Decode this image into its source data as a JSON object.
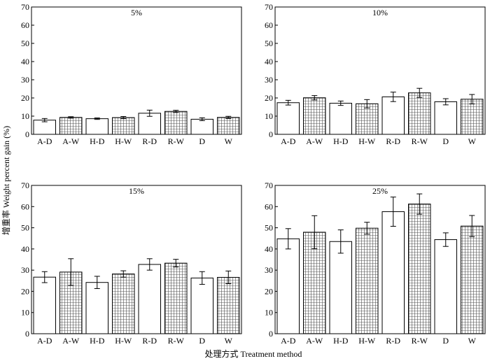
{
  "figure": {
    "ylabel": "增重率 Weight percent gain (%)",
    "xlabel": "处理方式 Treatment method",
    "colors": {
      "axis": "#000000",
      "bar_fill": "#ffffff",
      "hatch": "#555555"
    }
  },
  "chart_data": [
    {
      "type": "bar",
      "title": "5%",
      "categories": [
        "A-D",
        "A-W",
        "H-D",
        "H-W",
        "R-D",
        "R-W",
        "D",
        "W"
      ],
      "values": [
        7.8,
        9.3,
        8.6,
        9.2,
        11.6,
        12.6,
        8.3,
        9.3
      ],
      "errors": [
        0.9,
        0.4,
        0.4,
        0.6,
        1.7,
        0.6,
        0.8,
        0.6
      ],
      "hatched": [
        false,
        true,
        false,
        true,
        false,
        true,
        false,
        true
      ],
      "ylim": [
        0,
        70
      ],
      "yticks": [
        0,
        10,
        20,
        30,
        40,
        50,
        60,
        70
      ]
    },
    {
      "type": "bar",
      "title": "10%",
      "categories": [
        "A-D",
        "A-W",
        "H-D",
        "H-W",
        "R-D",
        "R-W",
        "D",
        "W"
      ],
      "values": [
        17.4,
        20.1,
        17.1,
        16.8,
        20.6,
        22.8,
        17.9,
        19.3
      ],
      "errors": [
        1.3,
        1.2,
        1.2,
        2.3,
        2.6,
        2.5,
        1.7,
        2.6
      ],
      "hatched": [
        false,
        true,
        false,
        true,
        false,
        true,
        false,
        true
      ],
      "ylim": [
        0,
        70
      ],
      "yticks": [
        0,
        10,
        20,
        30,
        40,
        50,
        60,
        70
      ]
    },
    {
      "type": "bar",
      "title": "15%",
      "categories": [
        "A-D",
        "A-W",
        "H-D",
        "H-W",
        "R-D",
        "R-W",
        "D",
        "W"
      ],
      "values": [
        26.7,
        29.1,
        24.2,
        28.2,
        32.7,
        33.3,
        26.3,
        26.6
      ],
      "errors": [
        2.6,
        6.3,
        2.9,
        1.5,
        2.7,
        1.8,
        3.0,
        3.0
      ],
      "hatched": [
        false,
        true,
        false,
        true,
        false,
        true,
        false,
        true
      ],
      "ylim": [
        0,
        70
      ],
      "yticks": [
        0,
        10,
        20,
        30,
        40,
        50,
        60,
        70
      ]
    },
    {
      "type": "bar",
      "title": "25%",
      "categories": [
        "A-D",
        "A-W",
        "H-D",
        "H-W",
        "R-D",
        "R-W",
        "D",
        "W"
      ],
      "values": [
        44.8,
        47.9,
        43.5,
        49.8,
        57.6,
        61.2,
        44.4,
        50.8
      ],
      "errors": [
        4.8,
        7.8,
        5.5,
        2.8,
        6.9,
        4.8,
        3.2,
        5.0
      ],
      "hatched": [
        false,
        true,
        false,
        true,
        false,
        true,
        false,
        true
      ],
      "ylim": [
        0,
        70
      ],
      "yticks": [
        0,
        10,
        20,
        30,
        40,
        50,
        60,
        70
      ]
    }
  ]
}
